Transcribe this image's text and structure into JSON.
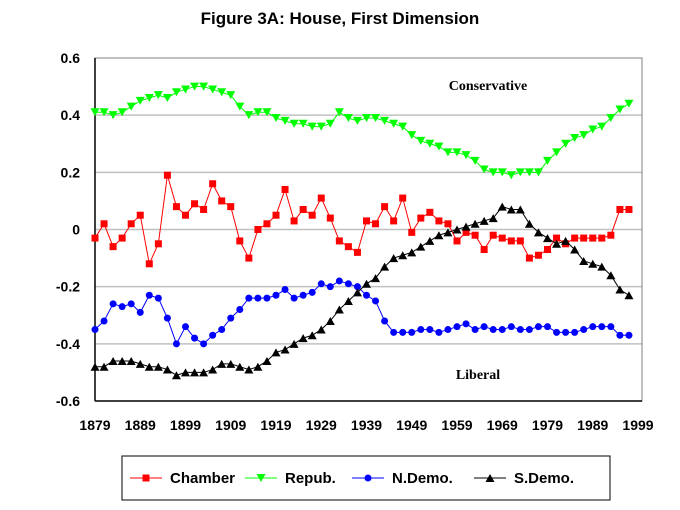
{
  "chart_data": {
    "type": "line",
    "title": "Figure 3A:  House, First Dimension",
    "xlabel": "",
    "ylabel": "",
    "xlim": [
      1879,
      1999
    ],
    "ylim": [
      -0.6,
      0.6
    ],
    "xticks": [
      "1879",
      "1889",
      "1899",
      "1909",
      "1919",
      "1929",
      "1939",
      "1949",
      "1959",
      "1969",
      "1979",
      "1989",
      "1999"
    ],
    "yticks": [
      "0.6",
      "0.4",
      "0.2",
      "0",
      "-0.2",
      "-0.4",
      "-0.6"
    ],
    "grid": true,
    "annotations": [
      "Conservative",
      "Liberal"
    ],
    "legend_position": "bottom",
    "x_start": 1879,
    "x_step": 2,
    "series": [
      {
        "name": "Chamber",
        "color": "#ff0000",
        "marker": "square",
        "values": [
          -0.03,
          0.02,
          -0.06,
          -0.03,
          0.02,
          0.05,
          -0.12,
          -0.05,
          0.19,
          0.08,
          0.05,
          0.09,
          0.07,
          0.16,
          0.1,
          0.08,
          -0.04,
          -0.1,
          0.0,
          0.02,
          0.05,
          0.14,
          0.03,
          0.07,
          0.05,
          0.11,
          0.04,
          -0.04,
          -0.06,
          -0.08,
          0.03,
          0.02,
          0.08,
          0.03,
          0.11,
          -0.01,
          0.04,
          0.06,
          0.03,
          0.02,
          -0.04,
          -0.01,
          -0.02,
          -0.07,
          -0.02,
          -0.03,
          -0.04,
          -0.04,
          -0.1,
          -0.09,
          -0.07,
          -0.03,
          -0.05,
          -0.03,
          -0.03,
          -0.03,
          -0.03,
          -0.02,
          0.07,
          0.07
        ]
      },
      {
        "name": "Repub.",
        "color": "#00ff00",
        "marker": "triangle-down",
        "values": [
          0.41,
          0.41,
          0.4,
          0.41,
          0.43,
          0.45,
          0.46,
          0.47,
          0.46,
          0.48,
          0.49,
          0.5,
          0.5,
          0.49,
          0.48,
          0.47,
          0.43,
          0.4,
          0.41,
          0.41,
          0.39,
          0.38,
          0.37,
          0.37,
          0.36,
          0.36,
          0.37,
          0.41,
          0.39,
          0.38,
          0.39,
          0.39,
          0.38,
          0.37,
          0.36,
          0.33,
          0.31,
          0.3,
          0.29,
          0.27,
          0.27,
          0.26,
          0.24,
          0.21,
          0.2,
          0.2,
          0.19,
          0.2,
          0.2,
          0.2,
          0.24,
          0.27,
          0.3,
          0.32,
          0.33,
          0.35,
          0.36,
          0.39,
          0.42,
          0.44
        ]
      },
      {
        "name": "N.Demo.",
        "color": "#0000ff",
        "marker": "circle",
        "values": [
          -0.35,
          -0.32,
          -0.26,
          -0.27,
          -0.26,
          -0.29,
          -0.23,
          -0.24,
          -0.31,
          -0.4,
          -0.34,
          -0.38,
          -0.4,
          -0.37,
          -0.35,
          -0.31,
          -0.28,
          -0.24,
          -0.24,
          -0.24,
          -0.23,
          -0.21,
          -0.24,
          -0.23,
          -0.22,
          -0.19,
          -0.2,
          -0.18,
          -0.19,
          -0.2,
          -0.23,
          -0.25,
          -0.32,
          -0.36,
          -0.36,
          -0.36,
          -0.35,
          -0.35,
          -0.36,
          -0.35,
          -0.34,
          -0.33,
          -0.35,
          -0.34,
          -0.35,
          -0.35,
          -0.34,
          -0.35,
          -0.35,
          -0.34,
          -0.34,
          -0.36,
          -0.36,
          -0.36,
          -0.35,
          -0.34,
          -0.34,
          -0.34,
          -0.37,
          -0.37
        ]
      },
      {
        "name": "S.Demo.",
        "color": "#000000",
        "marker": "triangle-up",
        "values": [
          -0.48,
          -0.48,
          -0.46,
          -0.46,
          -0.46,
          -0.47,
          -0.48,
          -0.48,
          -0.49,
          -0.51,
          -0.5,
          -0.5,
          -0.5,
          -0.49,
          -0.47,
          -0.47,
          -0.48,
          -0.49,
          -0.48,
          -0.46,
          -0.43,
          -0.42,
          -0.4,
          -0.38,
          -0.37,
          -0.35,
          -0.32,
          -0.28,
          -0.25,
          -0.22,
          -0.19,
          -0.17,
          -0.13,
          -0.1,
          -0.09,
          -0.08,
          -0.06,
          -0.04,
          -0.02,
          -0.01,
          0.0,
          0.01,
          0.02,
          0.03,
          0.04,
          0.08,
          0.07,
          0.07,
          0.02,
          -0.01,
          -0.03,
          -0.05,
          -0.04,
          -0.07,
          -0.11,
          -0.12,
          -0.13,
          -0.16,
          -0.21,
          -0.23
        ]
      }
    ]
  }
}
